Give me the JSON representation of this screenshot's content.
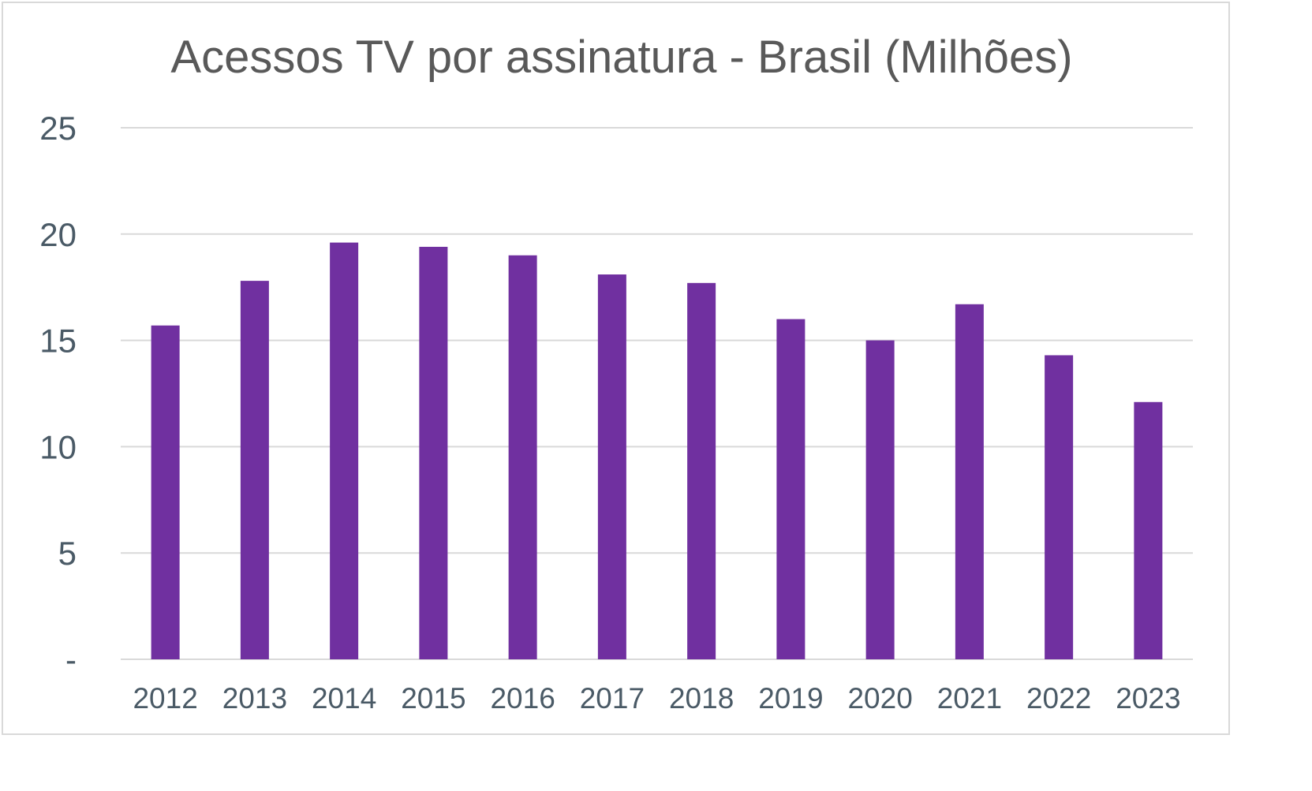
{
  "chart_data": {
    "type": "bar",
    "title": "Acessos TV por assinatura - Brasil (Milhões)",
    "xlabel": "",
    "ylabel": "",
    "categories": [
      "2012",
      "2013",
      "2014",
      "2015",
      "2016",
      "2017",
      "2018",
      "2019",
      "2020",
      "2021",
      "2022",
      "2023"
    ],
    "values": [
      15.7,
      17.8,
      19.6,
      19.4,
      19.0,
      18.1,
      17.7,
      16.0,
      15.0,
      16.7,
      14.3,
      12.1
    ],
    "ylim": [
      0,
      25
    ],
    "yticks": [
      0,
      5,
      10,
      15,
      20,
      25
    ],
    "ytick_labels": [
      "-",
      "5",
      "10",
      "15",
      "20",
      "25"
    ],
    "grid": true,
    "legend": "none",
    "bar_color": "#7030a0",
    "grid_color": "#d9d9d9",
    "axis_color": "#d9d9d9"
  }
}
